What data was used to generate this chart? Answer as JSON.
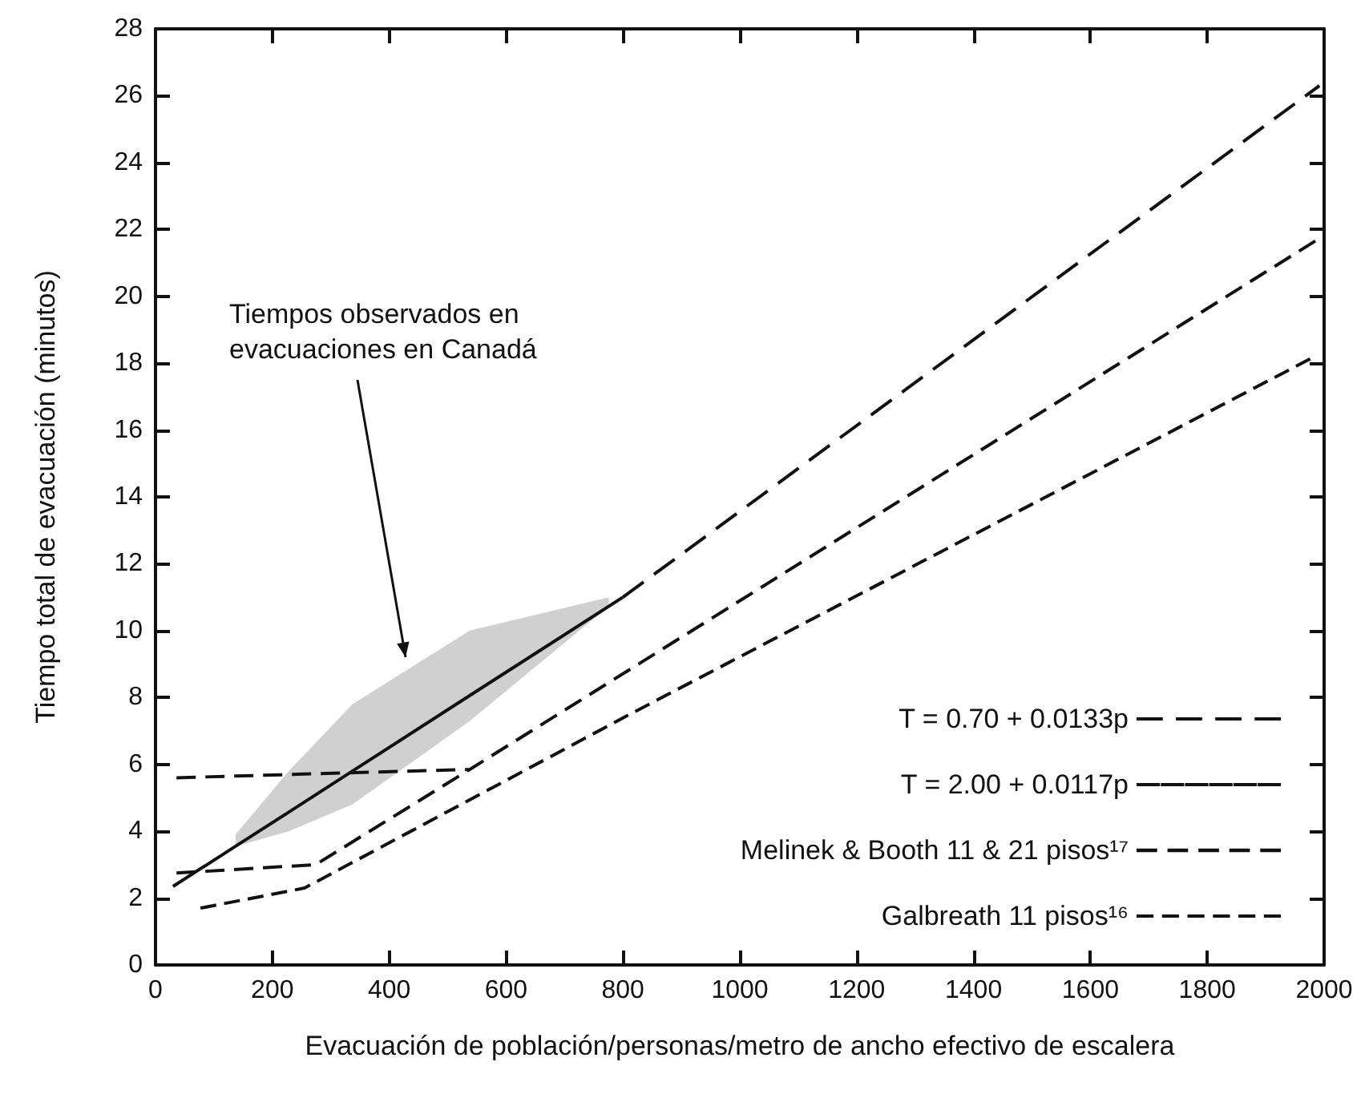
{
  "chart_data": {
    "type": "line",
    "xlabel": "Evacuación de población/personas/metro de ancho efectivo de escalera",
    "ylabel": "Tiempo total de evacuación (minutos)",
    "xlim": [
      0,
      2000
    ],
    "xticks": [
      0,
      200,
      400,
      600,
      800,
      1000,
      1200,
      1400,
      1600,
      1800,
      2000
    ],
    "ylim": [
      0,
      28
    ],
    "yticks": [
      0,
      2,
      4,
      6,
      8,
      10,
      12,
      14,
      16,
      18,
      20,
      22,
      24,
      26,
      28
    ],
    "grid": false,
    "legend": "bottom right",
    "marker": "none",
    "annotations": [
      "Tiempos observados en evacuaciones en Canadá"
    ],
    "series": [
      {
        "name": "T = 0.70 + 0.0133p",
        "color": "#111111",
        "line_style": "dashed",
        "x": [
          800,
          1992
        ],
        "values": [
          11.0,
          26.3
        ]
      },
      {
        "name": "T = 2.00 + 0.0117p",
        "color": "#111111",
        "line_style": "solid",
        "x": [
          30,
          137,
          228,
          337,
          538,
          776,
          800
        ],
        "values": [
          2.35,
          3.55,
          4.57,
          5.8,
          8.06,
          10.73,
          11.0
        ],
        "lower": [
          null,
          3.55,
          4.0,
          4.8,
          7.3,
          10.73,
          null
        ],
        "upper": [
          null,
          3.9,
          5.8,
          7.8,
          10.0,
          11.0,
          null
        ]
      },
      {
        "name": "Melinek & Booth 11 & 21 pisos¹⁷",
        "color": "#111111",
        "line_style": "dashed",
        "x": [
          36,
          538,
          null,
          36,
          274,
          538,
          1051,
          1989
        ],
        "values": [
          5.6,
          5.85,
          null,
          2.75,
          3.0,
          5.85,
          11.45,
          21.7
        ]
      },
      {
        "name": "Galbreath 11 pisos¹⁶",
        "color": "#111111",
        "line_style": "dashed",
        "x": [
          77,
          255,
          812,
          1984
        ],
        "values": [
          1.7,
          2.3,
          7.5,
          18.2
        ]
      }
    ]
  }
}
